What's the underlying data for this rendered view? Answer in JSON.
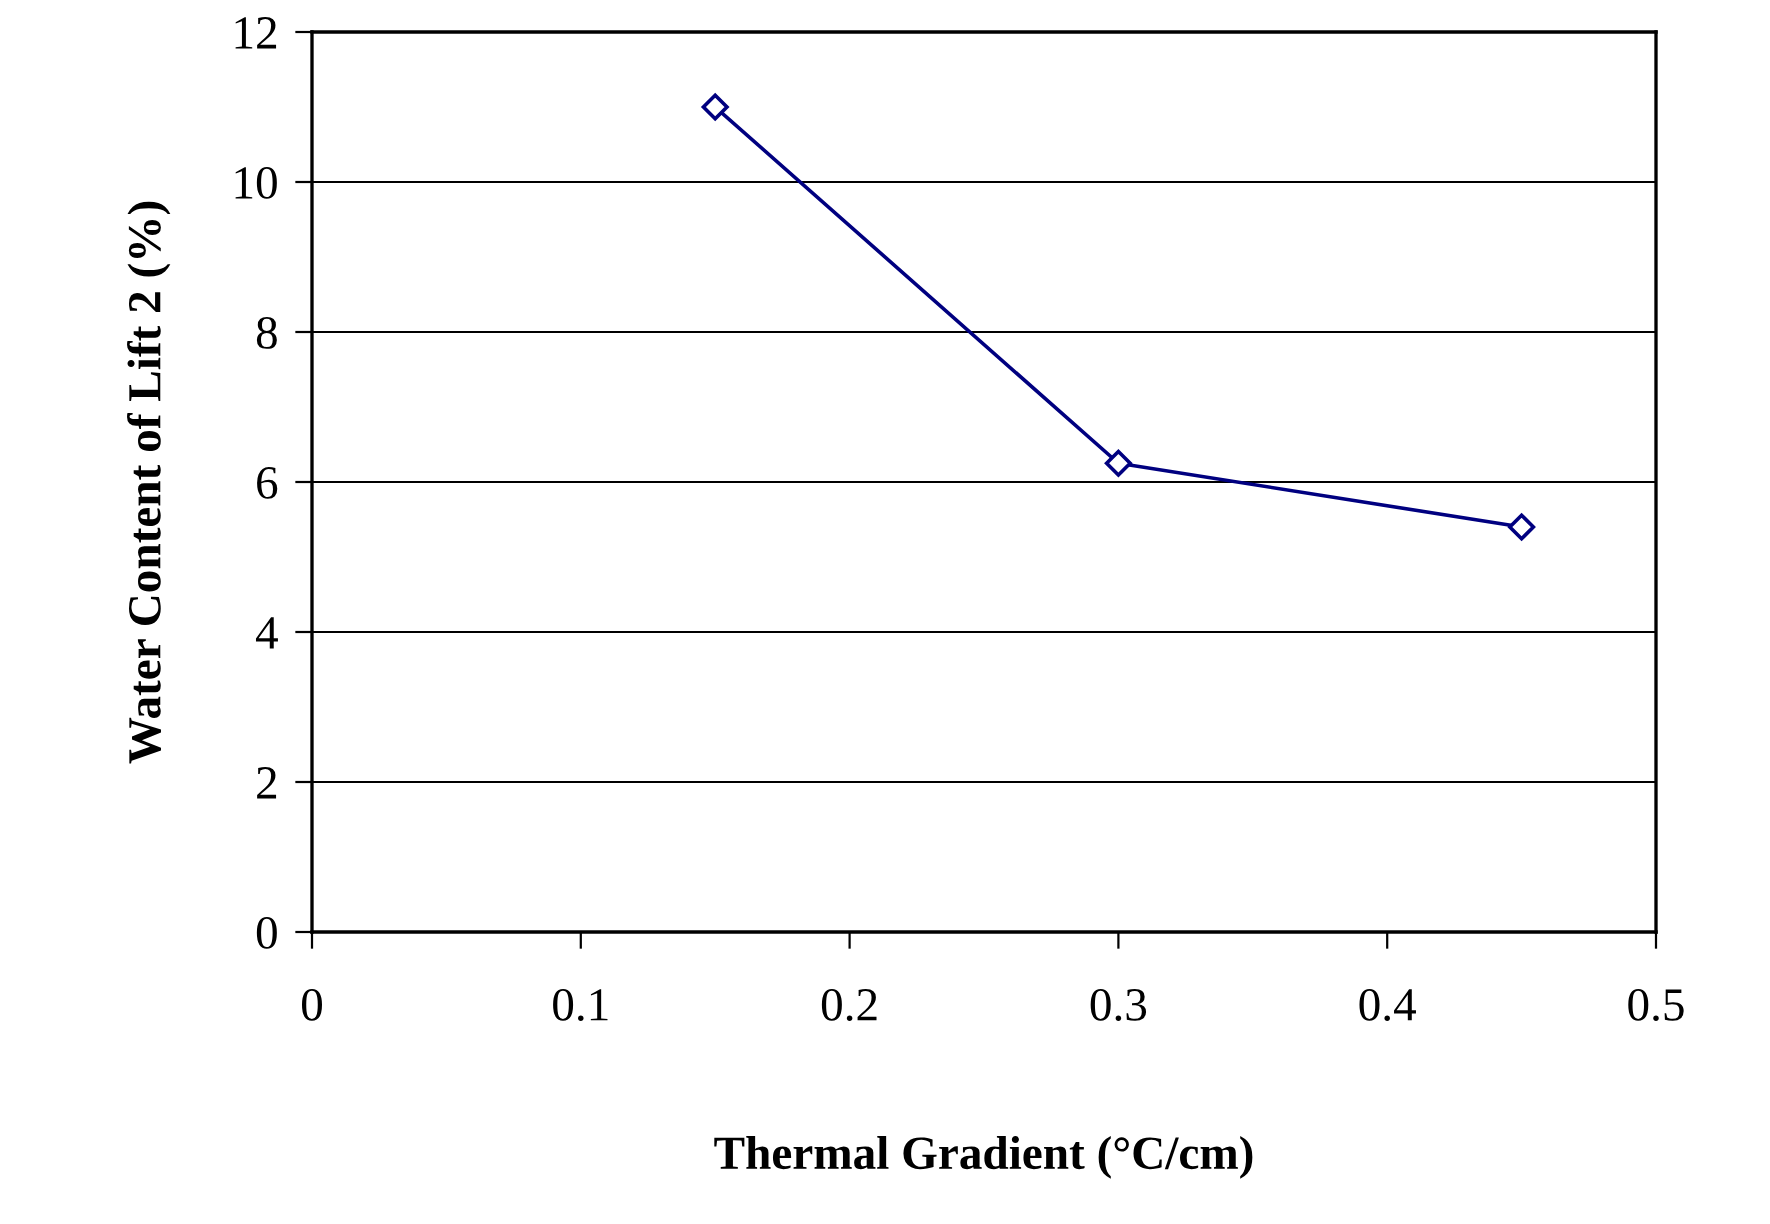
{
  "chart_data": {
    "type": "line",
    "xlabel": "Thermal Gradient (°C/cm)",
    "ylabel": "Water Content of Lift 2 (%)",
    "x": [
      0.15,
      0.3,
      0.45
    ],
    "series": [
      {
        "color": "#000080",
        "values": [
          11.0,
          6.25,
          5.4
        ]
      }
    ],
    "xlim": [
      0,
      0.5
    ],
    "xticks": [
      0,
      0.1,
      0.2,
      0.3,
      0.4,
      0.5
    ],
    "ylim": [
      0,
      12
    ],
    "yticks": [
      0,
      2,
      4,
      6,
      8,
      10,
      12
    ],
    "grid": "y",
    "marker": "diamond",
    "line_style": "solid",
    "legend": false
  }
}
